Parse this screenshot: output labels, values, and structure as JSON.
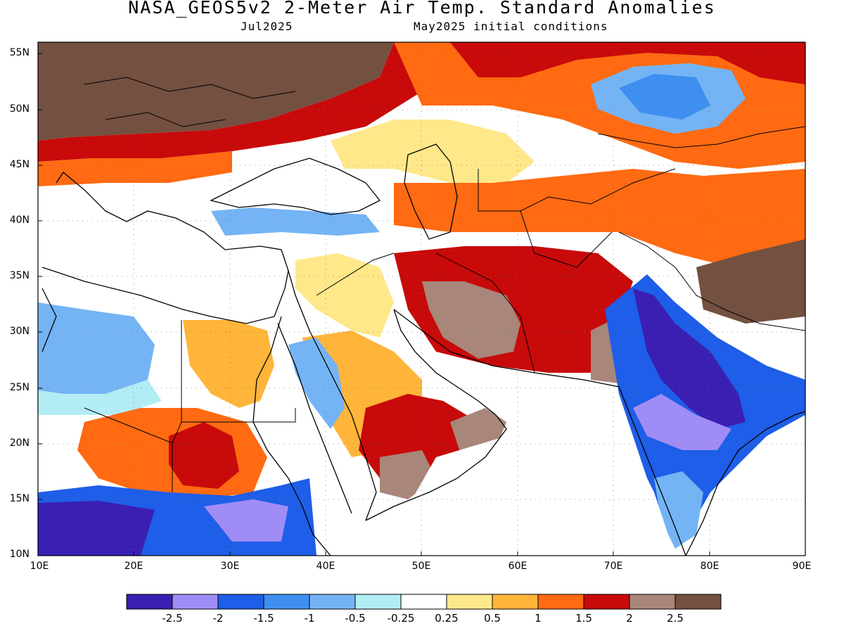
{
  "header": {
    "title": "NASA_GEOS5v2 2-Meter Air Temp. Standard Anomalies",
    "valid_month": "Jul2025",
    "init_conditions": "May2025 initial conditions"
  },
  "axes": {
    "lat_labels": [
      "55N",
      "50N",
      "45N",
      "40N",
      "35N",
      "30N",
      "25N",
      "20N",
      "15N",
      "10N"
    ],
    "lon_labels": [
      "10E",
      "20E",
      "30E",
      "40E",
      "50E",
      "60E",
      "70E",
      "80E",
      "90E"
    ]
  },
  "colorbar": {
    "colors": [
      "#3a1fb2",
      "#a08cf5",
      "#1e5ee8",
      "#3e8ff0",
      "#74b4f4",
      "#b2ecf4",
      "#ffffff",
      "#ffe88a",
      "#ffb53a",
      "#ff6a12",
      "#c80a0a",
      "#a8867a",
      "#735040"
    ],
    "labels": [
      "-2.5",
      "-2",
      "-1.5",
      "-1",
      "-0.5",
      "-0.25",
      "0.25",
      "0.5",
      "1",
      "1.5",
      "2",
      "2.5"
    ]
  }
}
